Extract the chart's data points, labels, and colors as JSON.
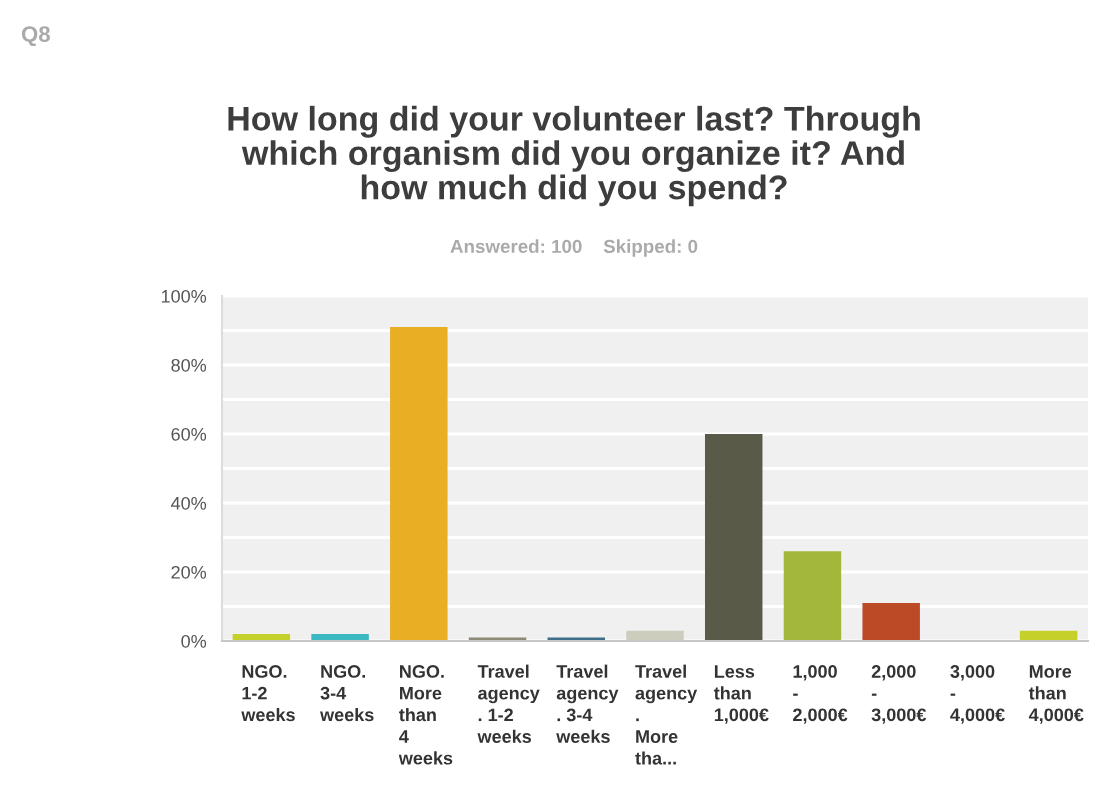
{
  "chart_data": {
    "type": "bar",
    "title": "How long did your volunteer last? Through\nwhich organism did you organize it? And\nhow much did you spend?",
    "subtitle": "Answered: 100    Skipped: 0",
    "annotations": [
      "Q8"
    ],
    "categories": [
      "NGO.\n1-2\nweeks",
      "NGO.\n3-4\nweeks",
      "NGO.\nMore\nthan\n4\nweeks",
      "Travel\nagency\n. 1-2\nweeks",
      "Travel\nagency\n. 3-4\nweeks",
      "Travel\nagency\n.\nMore\ntha...",
      "Less\nthan\n1,000€",
      "1,000\n-\n2,000€",
      "2,000\n-\n3,000€",
      "3,000\n-\n4,000€",
      "More\nthan\n4,000€"
    ],
    "values": [
      2,
      2,
      91,
      1,
      1,
      3,
      60,
      26,
      11,
      0,
      3
    ],
    "colors": [
      "#c5d12a",
      "#3cb8c2",
      "#e8ae24",
      "#8c8a74",
      "#3e6e8a",
      "#cdcdbd",
      "#595a47",
      "#a3b83a",
      "#bc4a27",
      "#7a9c9e",
      "#c5d12a"
    ],
    "ylim": [
      0,
      100
    ],
    "yticks": [
      {
        "value": 0,
        "label": "0%"
      },
      {
        "value": 10,
        "label": null
      },
      {
        "value": 20,
        "label": "20%"
      },
      {
        "value": 30,
        "label": null
      },
      {
        "value": 40,
        "label": "40%"
      },
      {
        "value": 50,
        "label": null
      },
      {
        "value": 60,
        "label": "60%"
      },
      {
        "value": 70,
        "label": null
      },
      {
        "value": 80,
        "label": "80%"
      },
      {
        "value": 90,
        "label": null
      },
      {
        "value": 100,
        "label": "100%"
      }
    ],
    "grid": "y"
  }
}
